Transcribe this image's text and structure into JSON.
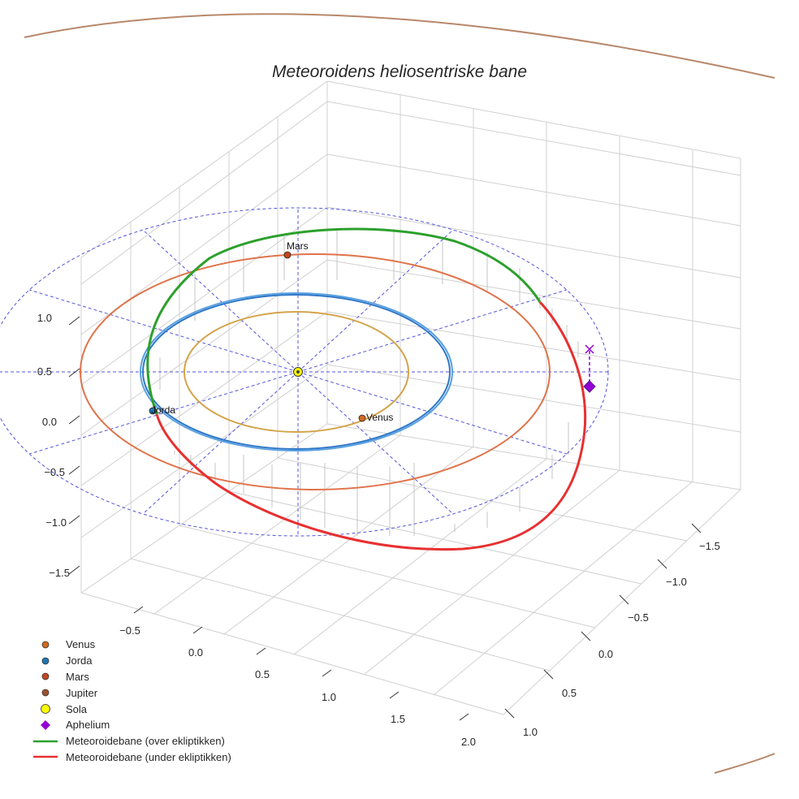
{
  "chart_data": {
    "type": "line",
    "title": "Meteoroidens heliosentriske bane",
    "projection": "3d",
    "grid": true,
    "legend_position": "bottom-left",
    "axes": {
      "x": {
        "ticks": [
          "−0.5",
          "0.0",
          "0.5",
          "1.0",
          "1.5",
          "2.0"
        ],
        "tick_values": [
          -0.5,
          0.0,
          0.5,
          1.0,
          1.5,
          2.0
        ]
      },
      "y": {
        "ticks": [
          "−1.5",
          "−1.0",
          "−0.5",
          "0.0",
          "0.5",
          "1.0"
        ],
        "tick_values": [
          -1.5,
          -1.0,
          -0.5,
          0.0,
          0.5,
          1.0
        ]
      },
      "z": {
        "ticks": [
          "−1.5",
          "−1.0",
          "−0.5",
          "0.0",
          "0.5",
          "1.0"
        ],
        "tick_values": [
          -1.5,
          -1.0,
          -0.5,
          0.0,
          0.5,
          1.0
        ]
      }
    },
    "orbits": [
      {
        "name": "Venus",
        "radius_au": 0.72,
        "color": "#d4a44c"
      },
      {
        "name": "Jorda",
        "radius_au": 1.0,
        "color": "#2e78c8"
      },
      {
        "name": "Mars",
        "radius_au": 1.52,
        "color": "#e0734a"
      }
    ],
    "planets": [
      {
        "name": "Venus",
        "label": "Venus",
        "color": "#d2691e"
      },
      {
        "name": "Jorda",
        "label": "Jorda",
        "color": "#1f77b4"
      },
      {
        "name": "Mars",
        "label": "Mars",
        "color": "#c8451c"
      },
      {
        "name": "Jupiter",
        "label": "",
        "color": "#a0522d"
      },
      {
        "name": "Sola",
        "label": "",
        "color": "#ffff00"
      }
    ],
    "meteoroid_orbit": {
      "above_ecliptic_color": "#2ca02c",
      "below_ecliptic_color": "#e83030",
      "aphelium_color": "#9400d3"
    },
    "legend": [
      {
        "label": "Venus",
        "marker": "circle",
        "color": "#d2691e"
      },
      {
        "label": "Jorda",
        "marker": "circle",
        "color": "#1f77b4"
      },
      {
        "label": "Mars",
        "marker": "circle",
        "color": "#c8451c"
      },
      {
        "label": "Jupiter",
        "marker": "circle",
        "color": "#a0522d"
      },
      {
        "label": "Sola",
        "marker": "circle-large",
        "color": "#ffff00"
      },
      {
        "label": "Aphelium",
        "marker": "diamond",
        "color": "#9400d3"
      },
      {
        "label": "Meteoroidebane (over ekliptikken)",
        "marker": "line",
        "color": "#2ca02c"
      },
      {
        "label": "Meteoroidebane (under ekliptikken)",
        "marker": "line",
        "color": "#e83030"
      }
    ],
    "jupiter_orbit_color": "#b8876a"
  }
}
